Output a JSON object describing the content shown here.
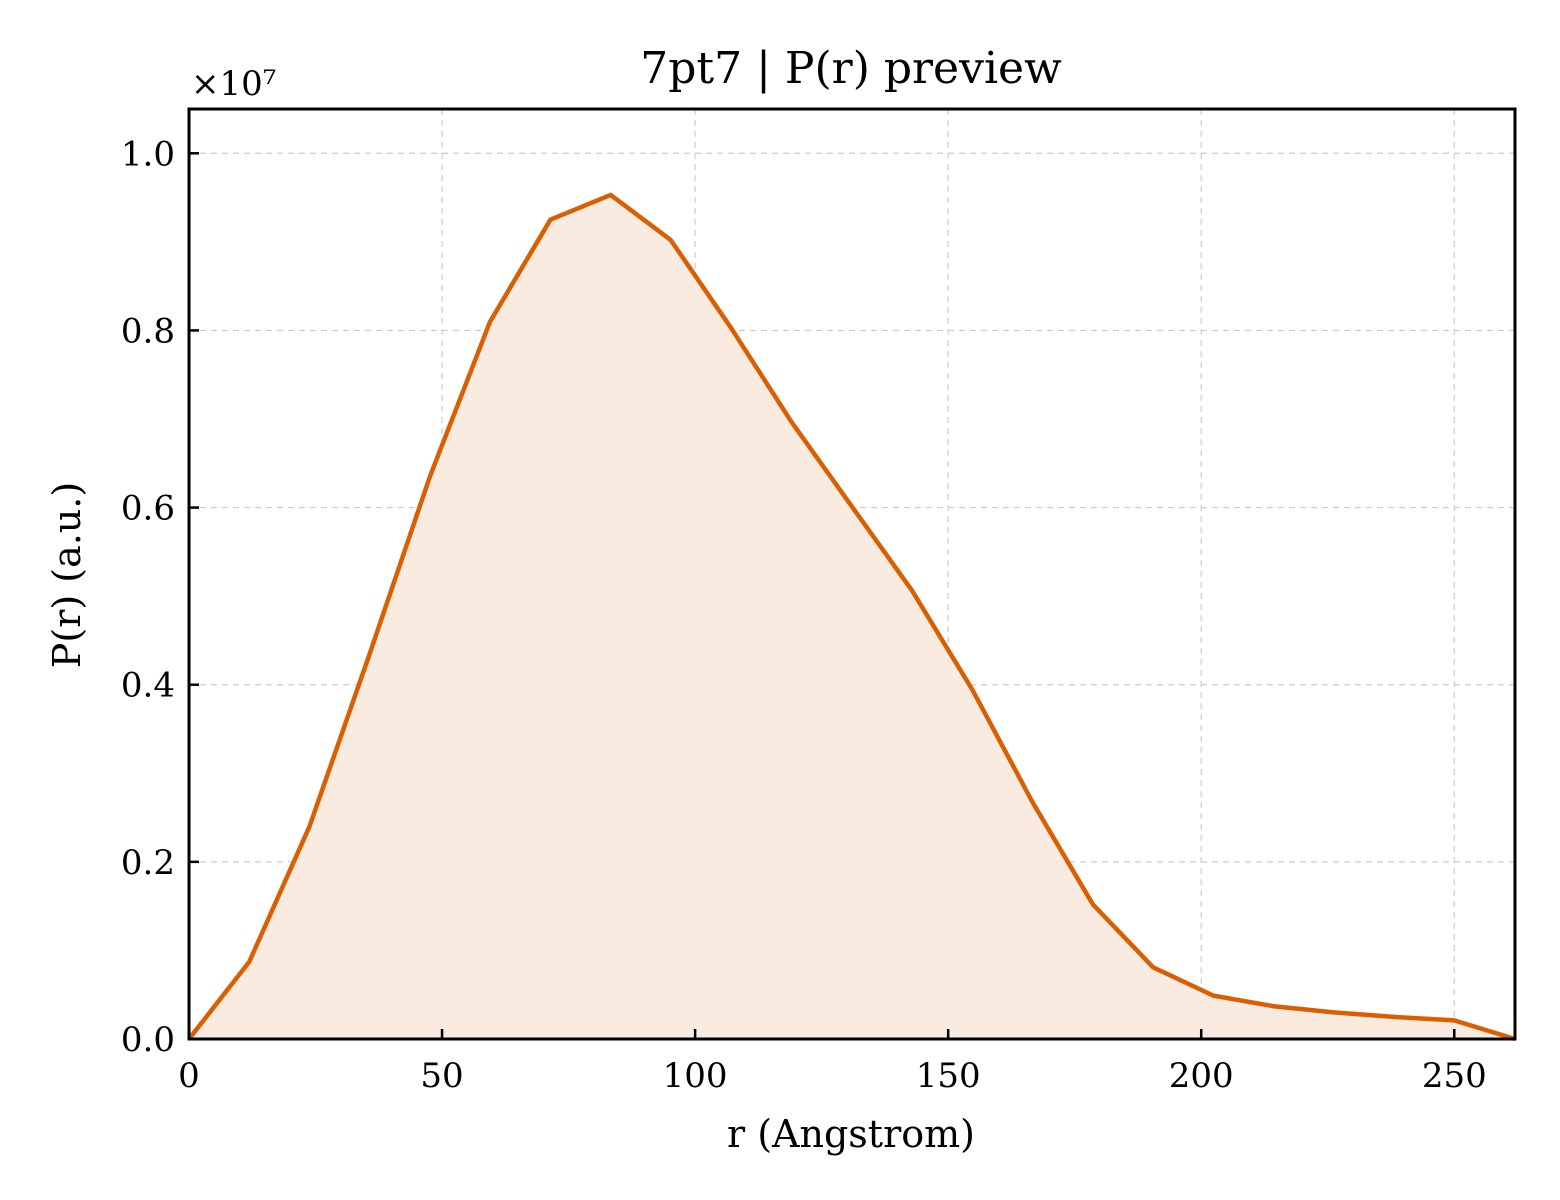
{
  "chart_data": {
    "type": "line",
    "title": "7pt7 | P(r) preview",
    "xlabel": "r (Angstrom)",
    "ylabel": "P(r) (a.u.)",
    "y_offset_label": "×10⁷",
    "xlim": [
      0,
      262
    ],
    "ylim": [
      0,
      1.05
    ],
    "xticks": [
      0,
      50,
      100,
      150,
      200,
      250
    ],
    "xtick_labels": [
      "0",
      "50",
      "100",
      "150",
      "200",
      "250"
    ],
    "yticks": [
      0,
      0.2,
      0.4,
      0.6,
      0.8,
      1.0
    ],
    "ytick_labels": [
      "0.0",
      "0.2",
      "0.4",
      "0.6",
      "0.8",
      "1.0"
    ],
    "grid": true,
    "fill_under": true,
    "color": "#d95f02",
    "fill_color": "#f9ebe0",
    "series": [
      {
        "x": [
          0,
          11.9,
          23.8,
          35.7,
          47.6,
          59.5,
          71.4,
          83.3,
          95.2,
          107.1,
          119.0,
          131.0,
          142.9,
          154.8,
          166.7,
          178.6,
          190.5,
          202.4,
          214.3,
          226.2,
          238.1,
          250.0,
          262.0
        ],
        "y": [
          0.0,
          0.087,
          0.24,
          0.435,
          0.635,
          0.81,
          0.925,
          0.953,
          0.902,
          0.803,
          0.697,
          0.601,
          0.506,
          0.394,
          0.267,
          0.152,
          0.081,
          0.049,
          0.037,
          0.03,
          0.025,
          0.021,
          0.0
        ]
      }
    ]
  }
}
